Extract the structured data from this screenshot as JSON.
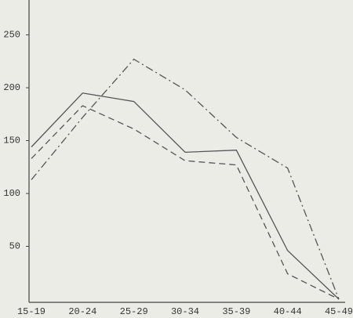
{
  "chart_data": {
    "type": "line",
    "categories": [
      "15-19",
      "20-24",
      "25-29",
      "30-34",
      "35-39",
      "40-44",
      "45-49"
    ],
    "series": [
      {
        "color": "#555555",
        "dash": "solid",
        "values": [
          144,
          195,
          187,
          139,
          141,
          46,
          0
        ]
      },
      {
        "color": "#555555",
        "dash": "dashed",
        "values": [
          133,
          183,
          161,
          131,
          127,
          24,
          0
        ]
      },
      {
        "color": "#555555",
        "dash": "dashdot",
        "values": [
          113,
          172,
          227,
          198,
          153,
          124,
          0
        ]
      }
    ],
    "ylim": [
      0,
      283
    ],
    "yticks": [
      50,
      100,
      150,
      200,
      250
    ]
  }
}
